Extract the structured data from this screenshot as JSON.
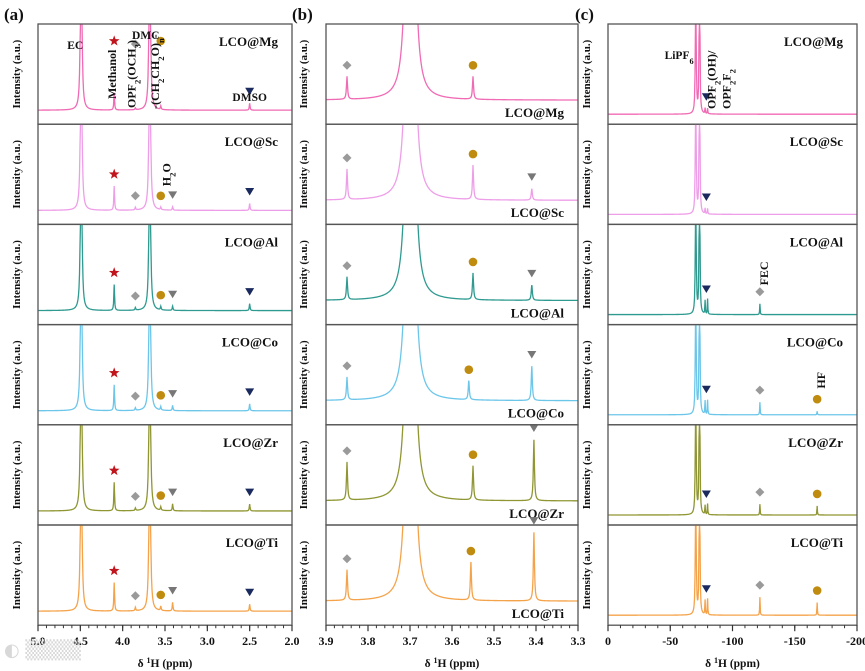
{
  "figure": {
    "watermark": "大数跨境"
  },
  "colors": {
    "LCO@Mg": "#f06ab4",
    "LCO@Sc": "#ee9ee8",
    "LCO@Al": "#2e9a90",
    "LCO@Co": "#6cc6ea",
    "LCO@Zr": "#8f9632",
    "LCO@Ti": "#f5a34a",
    "star": "#c0151c",
    "diamond": "#9a9a9a",
    "circle": "#c08c10",
    "triangle_gray": "#777777",
    "triangle_navy": "#1a2a5e"
  },
  "chart_data": [
    {
      "panel": "(a)",
      "type": "line",
      "xlabel": "δ 1H (ppm)",
      "ylabel": "Intensity (a.u.)",
      "xlim": [
        5.0,
        2.0
      ],
      "xticks": [
        "5.0",
        "4.5",
        "4.0",
        "3.5",
        "3.0",
        "2.5",
        "2.0"
      ],
      "xtick_values": [
        5.0,
        4.5,
        4.0,
        3.5,
        3.0,
        2.5,
        2.0
      ],
      "minor_step": 0.1,
      "label_pos": "top-right",
      "series": [
        {
          "name": "LCO@Mg",
          "peaks": [
            [
              4.49,
              3,
              0.008
            ],
            [
              4.1,
              0.2,
              0.005
            ],
            [
              3.85,
              0.02,
              0.005
            ],
            [
              3.68,
              3,
              0.008
            ],
            [
              3.55,
              0.04,
              0.005
            ],
            [
              2.5,
              0.08,
              0.005
            ]
          ],
          "markers": [
            [
              "star",
              4.1
            ],
            [
              "diamond",
              3.85
            ],
            [
              "circle",
              3.55
            ],
            [
              "triangle_navy",
              2.5
            ]
          ],
          "annotations": [
            {
              "text": "EC",
              "x": 4.49,
              "rot": false
            },
            {
              "text": "Methanol",
              "x": 4.1,
              "rot": true
            },
            {
              "text": "OPF2(OCH3)",
              "x": 3.85,
              "rot": true
            },
            {
              "text": "DMC",
              "x": 3.68,
              "rot": false
            },
            {
              "text": "-(CH2CH2O)n-",
              "x": 3.55,
              "rot": true
            },
            {
              "text": "DMSO",
              "x": 2.5,
              "rot": false
            }
          ]
        },
        {
          "name": "LCO@Sc",
          "peaks": [
            [
              4.49,
              3,
              0.008
            ],
            [
              4.1,
              0.28,
              0.005
            ],
            [
              3.85,
              0.03,
              0.005
            ],
            [
              3.68,
              3,
              0.008
            ],
            [
              3.55,
              0.03,
              0.005
            ],
            [
              3.41,
              0.04,
              0.005
            ],
            [
              2.5,
              0.08,
              0.005
            ]
          ],
          "markers": [
            [
              "star",
              4.1
            ],
            [
              "diamond",
              3.85
            ],
            [
              "circle",
              3.55
            ],
            [
              "triangle_gray",
              3.41
            ],
            [
              "triangle_navy",
              2.5
            ]
          ],
          "annotations": [
            {
              "text": "H2O",
              "x": 3.41,
              "rot": true
            }
          ]
        },
        {
          "name": "LCO@Al",
          "peaks": [
            [
              4.49,
              3,
              0.008
            ],
            [
              4.1,
              0.3,
              0.005
            ],
            [
              3.85,
              0.03,
              0.005
            ],
            [
              3.68,
              3,
              0.008
            ],
            [
              3.55,
              0.04,
              0.005
            ],
            [
              3.41,
              0.05,
              0.005
            ],
            [
              2.5,
              0.08,
              0.005
            ]
          ],
          "markers": [
            [
              "star",
              4.1
            ],
            [
              "diamond",
              3.85
            ],
            [
              "circle",
              3.55
            ],
            [
              "triangle_gray",
              3.41
            ],
            [
              "triangle_navy",
              2.5
            ]
          ],
          "annotations": []
        },
        {
          "name": "LCO@Co",
          "peaks": [
            [
              4.49,
              3,
              0.008
            ],
            [
              4.1,
              0.3,
              0.005
            ],
            [
              3.85,
              0.03,
              0.005
            ],
            [
              3.68,
              3,
              0.008
            ],
            [
              3.55,
              0.04,
              0.005
            ],
            [
              3.41,
              0.06,
              0.005
            ],
            [
              2.5,
              0.08,
              0.005
            ]
          ],
          "markers": [
            [
              "star",
              4.1
            ],
            [
              "diamond",
              3.85
            ],
            [
              "circle",
              3.55
            ],
            [
              "triangle_gray",
              3.41
            ],
            [
              "triangle_navy",
              2.5
            ]
          ],
          "annotations": []
        },
        {
          "name": "LCO@Zr",
          "peaks": [
            [
              4.49,
              3,
              0.008
            ],
            [
              4.1,
              0.33,
              0.005
            ],
            [
              3.85,
              0.03,
              0.005
            ],
            [
              3.68,
              3,
              0.008
            ],
            [
              3.55,
              0.04,
              0.005
            ],
            [
              3.41,
              0.08,
              0.005
            ],
            [
              2.5,
              0.08,
              0.005
            ]
          ],
          "markers": [
            [
              "star",
              4.1
            ],
            [
              "diamond",
              3.85
            ],
            [
              "circle",
              3.55
            ],
            [
              "triangle_gray",
              3.41
            ],
            [
              "triangle_navy",
              2.5
            ]
          ],
          "annotations": []
        },
        {
          "name": "LCO@Ti",
          "peaks": [
            [
              4.49,
              3,
              0.008
            ],
            [
              4.1,
              0.33,
              0.005
            ],
            [
              3.85,
              0.04,
              0.005
            ],
            [
              3.68,
              3,
              0.008
            ],
            [
              3.55,
              0.05,
              0.005
            ],
            [
              3.41,
              0.1,
              0.005
            ],
            [
              2.5,
              0.08,
              0.005
            ]
          ],
          "markers": [
            [
              "star",
              4.1
            ],
            [
              "diamond",
              3.85
            ],
            [
              "circle",
              3.55
            ],
            [
              "triangle_gray",
              3.41
            ],
            [
              "triangle_navy",
              2.5
            ]
          ],
          "annotations": []
        }
      ]
    },
    {
      "panel": "(b)",
      "type": "line",
      "xlabel": "δ 1H (ppm)",
      "ylabel": "Intensity (a.u.)",
      "xlim": [
        3.9,
        3.3
      ],
      "xticks": [
        "3.9",
        "3.8",
        "3.7",
        "3.6",
        "3.5",
        "3.4",
        "3.3"
      ],
      "xtick_values": [
        3.9,
        3.8,
        3.7,
        3.6,
        3.5,
        3.4,
        3.3
      ],
      "minor_step": 0.02,
      "label_pos": "bottom-right",
      "series": [
        {
          "name": "LCO@Mg",
          "peaks": [
            [
              3.85,
              0.3,
              0.0015
            ],
            [
              3.705,
              3,
              0.007
            ],
            [
              3.693,
              3,
              0.007
            ],
            [
              3.55,
              0.3,
              0.0015
            ]
          ],
          "markers": [
            [
              "diamond",
              3.85
            ],
            [
              "circle",
              3.55
            ]
          ],
          "annotations": []
        },
        {
          "name": "LCO@Sc",
          "peaks": [
            [
              3.85,
              0.4,
              0.0015
            ],
            [
              3.705,
              3,
              0.007
            ],
            [
              3.693,
              3,
              0.007
            ],
            [
              3.55,
              0.45,
              0.0015
            ],
            [
              3.41,
              0.15,
              0.0015
            ]
          ],
          "markers": [
            [
              "diamond",
              3.85
            ],
            [
              "circle",
              3.55
            ],
            [
              "triangle_gray",
              3.41
            ]
          ],
          "annotations": []
        },
        {
          "name": "LCO@Al",
          "peaks": [
            [
              3.85,
              0.3,
              0.0015
            ],
            [
              3.705,
              3,
              0.007
            ],
            [
              3.693,
              3,
              0.007
            ],
            [
              3.55,
              0.35,
              0.0015
            ],
            [
              3.41,
              0.2,
              0.0015
            ]
          ],
          "markers": [
            [
              "diamond",
              3.85
            ],
            [
              "circle",
              3.55
            ],
            [
              "triangle_gray",
              3.41
            ]
          ],
          "annotations": []
        },
        {
          "name": "LCO@Co",
          "peaks": [
            [
              3.85,
              0.3,
              0.0015
            ],
            [
              3.705,
              3,
              0.007
            ],
            [
              3.693,
              3,
              0.007
            ],
            [
              3.56,
              0.25,
              0.0015
            ],
            [
              3.41,
              0.45,
              0.0015
            ]
          ],
          "markers": [
            [
              "diamond",
              3.85
            ],
            [
              "circle",
              3.56
            ],
            [
              "triangle_gray",
              3.41
            ]
          ],
          "annotations": []
        },
        {
          "name": "LCO@Zr",
          "peaks": [
            [
              3.85,
              0.5,
              0.0015
            ],
            [
              3.705,
              3,
              0.007
            ],
            [
              3.693,
              3,
              0.007
            ],
            [
              3.55,
              0.45,
              0.0015
            ],
            [
              3.405,
              0.8,
              0.0015
            ]
          ],
          "markers": [
            [
              "diamond",
              3.85
            ],
            [
              "circle",
              3.55
            ],
            [
              "triangle_gray",
              3.405
            ]
          ],
          "annotations": []
        },
        {
          "name": "LCO@Ti",
          "peaks": [
            [
              3.85,
              0.4,
              0.0015
            ],
            [
              3.705,
              3,
              0.007
            ],
            [
              3.693,
              3,
              0.007
            ],
            [
              3.555,
              0.5,
              0.0015
            ],
            [
              3.405,
              0.9,
              0.0015
            ]
          ],
          "markers": [
            [
              "diamond",
              3.85
            ],
            [
              "circle",
              3.555
            ],
            [
              "triangle_gray",
              3.405
            ]
          ],
          "annotations": []
        }
      ]
    },
    {
      "panel": "(c)",
      "type": "line",
      "xlabel": "δ 1H (ppm)",
      "ylabel": "Intensity (a.u.)",
      "xlim": [
        0,
        -200
      ],
      "xticks": [
        "0",
        "-50",
        "-100",
        "-150",
        "-200"
      ],
      "xtick_values": [
        0,
        -50,
        -100,
        -150,
        -200
      ],
      "minor_step": 10,
      "label_pos": "top-right",
      "series": [
        {
          "name": "LCO@Mg",
          "peaks": [
            [
              -70.5,
              3,
              0.25
            ],
            [
              -73.5,
              3,
              0.25
            ],
            [
              -78,
              0.06,
              0.2
            ],
            [
              -80,
              0.06,
              0.2
            ]
          ],
          "markers": [
            [
              "triangle_navy",
              -79
            ]
          ],
          "annotations": [
            {
              "text": "LiPF6",
              "x": -72,
              "rot": false
            },
            {
              "text": "OPF2(OH)/",
              "x": -83,
              "rot": true
            },
            {
              "text": "OPF2F2",
              "x": -95,
              "rot": true
            }
          ]
        },
        {
          "name": "LCO@Sc",
          "peaks": [
            [
              -70.5,
              3,
              0.25
            ],
            [
              -73.5,
              3,
              0.25
            ],
            [
              -78,
              0.06,
              0.2
            ],
            [
              -80,
              0.06,
              0.2
            ]
          ],
          "markers": [
            [
              "triangle_navy",
              -79
            ]
          ],
          "annotations": []
        },
        {
          "name": "LCO@Al",
          "peaks": [
            [
              -70.5,
              3,
              0.25
            ],
            [
              -73.5,
              3,
              0.25
            ],
            [
              -78,
              0.15,
              0.2
            ],
            [
              -80,
              0.17,
              0.2
            ],
            [
              -122,
              0.12,
              0.2
            ]
          ],
          "markers": [
            [
              "triangle_navy",
              -79
            ],
            [
              "diamond",
              -122
            ]
          ],
          "annotations": [
            {
              "text": "FEC",
              "x": -122,
              "rot": true
            }
          ]
        },
        {
          "name": "LCO@Co",
          "peaks": [
            [
              -70.5,
              3,
              0.25
            ],
            [
              -73.5,
              3,
              0.25
            ],
            [
              -78,
              0.15,
              0.2
            ],
            [
              -80,
              0.16,
              0.2
            ],
            [
              -122,
              0.14,
              0.2
            ],
            [
              -168,
              0.04,
              0.2
            ]
          ],
          "markers": [
            [
              "triangle_navy",
              -79
            ],
            [
              "diamond",
              -122
            ],
            [
              "circle",
              -168
            ]
          ],
          "annotations": [
            {
              "text": "HF",
              "x": -168,
              "rot": true
            }
          ]
        },
        {
          "name": "LCO@Zr",
          "peaks": [
            [
              -70.5,
              3,
              0.25
            ],
            [
              -73.5,
              3,
              0.25
            ],
            [
              -78,
              0.1,
              0.2
            ],
            [
              -80,
              0.12,
              0.2
            ],
            [
              -122,
              0.12,
              0.2
            ],
            [
              -168,
              0.1,
              0.2
            ]
          ],
          "markers": [
            [
              "triangle_navy",
              -79
            ],
            [
              "diamond",
              -122
            ],
            [
              "circle",
              -168
            ]
          ],
          "annotations": []
        },
        {
          "name": "LCO@Ti",
          "peaks": [
            [
              -70.5,
              3,
              0.25
            ],
            [
              -73.5,
              3,
              0.25
            ],
            [
              -78,
              0.16,
              0.2
            ],
            [
              -80,
              0.18,
              0.2
            ],
            [
              -122,
              0.2,
              0.2
            ],
            [
              -168,
              0.14,
              0.2
            ]
          ],
          "markers": [
            [
              "triangle_navy",
              -79
            ],
            [
              "diamond",
              -122
            ],
            [
              "circle",
              -168
            ]
          ],
          "annotations": []
        }
      ]
    }
  ]
}
